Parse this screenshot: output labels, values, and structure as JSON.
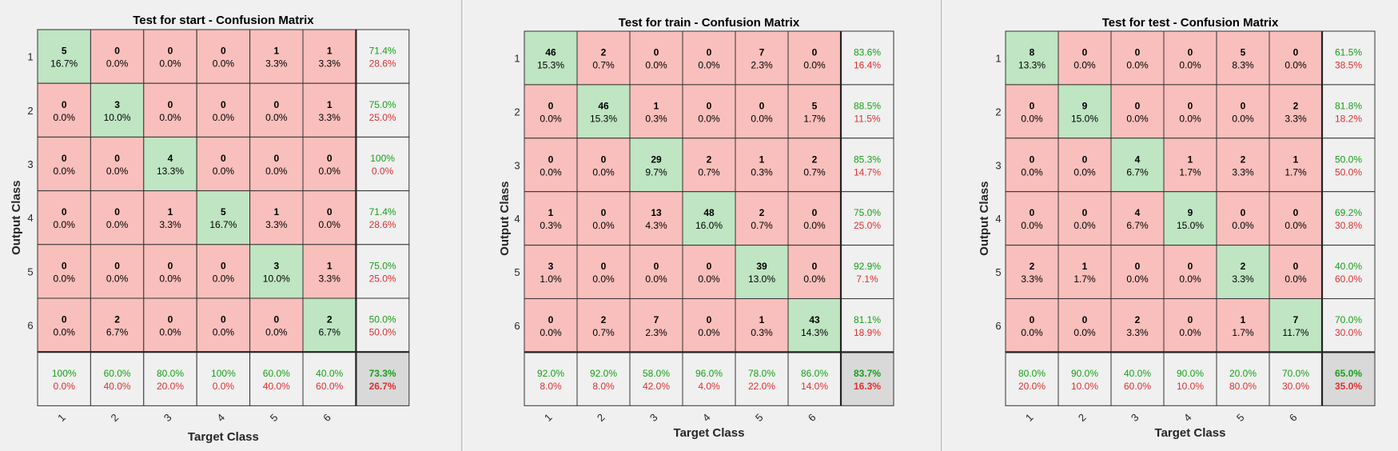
{
  "colors": {
    "correct_cell": "#bfe5c3",
    "wrong_cell": "#f9bfbc",
    "summary_cell": "#f0f0f0",
    "overall_cell": "#d9d9d9",
    "good_text": "#17a117",
    "bad_text": "#e03030",
    "background": "#f0f0f0"
  },
  "chart_data": [
    {
      "type": "heatmap",
      "title": "Test for start - Confusion Matrix",
      "xlabel": "Target Class",
      "ylabel": "Output Class",
      "classes": [
        "1",
        "2",
        "3",
        "4",
        "5",
        "6"
      ],
      "matrix": [
        [
          5,
          0,
          0,
          0,
          1,
          1
        ],
        [
          0,
          3,
          0,
          0,
          0,
          1
        ],
        [
          0,
          0,
          4,
          0,
          0,
          0
        ],
        [
          0,
          0,
          1,
          5,
          1,
          0
        ],
        [
          0,
          0,
          0,
          0,
          3,
          1
        ],
        [
          0,
          2,
          0,
          0,
          0,
          2
        ]
      ],
      "cell_pct": [
        [
          "16.7%",
          "0.0%",
          "0.0%",
          "0.0%",
          "3.3%",
          "3.3%"
        ],
        [
          "0.0%",
          "10.0%",
          "0.0%",
          "0.0%",
          "0.0%",
          "3.3%"
        ],
        [
          "0.0%",
          "0.0%",
          "13.3%",
          "0.0%",
          "0.0%",
          "0.0%"
        ],
        [
          "0.0%",
          "0.0%",
          "3.3%",
          "16.7%",
          "3.3%",
          "0.0%"
        ],
        [
          "0.0%",
          "0.0%",
          "0.0%",
          "0.0%",
          "10.0%",
          "3.3%"
        ],
        [
          "0.0%",
          "6.7%",
          "0.0%",
          "0.0%",
          "0.0%",
          "6.7%"
        ]
      ],
      "row_summary": [
        [
          "71.4%",
          "28.6%"
        ],
        [
          "75.0%",
          "25.0%"
        ],
        [
          "100%",
          "0.0%"
        ],
        [
          "71.4%",
          "28.6%"
        ],
        [
          "75.0%",
          "25.0%"
        ],
        [
          "50.0%",
          "50.0%"
        ]
      ],
      "col_summary": [
        [
          "100%",
          "0.0%"
        ],
        [
          "60.0%",
          "40.0%"
        ],
        [
          "80.0%",
          "20.0%"
        ],
        [
          "100%",
          "0.0%"
        ],
        [
          "60.0%",
          "40.0%"
        ],
        [
          "40.0%",
          "60.0%"
        ]
      ],
      "overall": [
        "73.3%",
        "26.7%"
      ]
    },
    {
      "type": "heatmap",
      "title": "Test for train - Confusion Matrix",
      "xlabel": "Target Class",
      "ylabel": "Output Class",
      "classes": [
        "1",
        "2",
        "3",
        "4",
        "5",
        "6"
      ],
      "matrix": [
        [
          46,
          2,
          0,
          0,
          7,
          0
        ],
        [
          0,
          46,
          1,
          0,
          0,
          5
        ],
        [
          0,
          0,
          29,
          2,
          1,
          2
        ],
        [
          1,
          0,
          13,
          48,
          2,
          0
        ],
        [
          3,
          0,
          0,
          0,
          39,
          0
        ],
        [
          0,
          2,
          7,
          0,
          1,
          43
        ]
      ],
      "cell_pct": [
        [
          "15.3%",
          "0.7%",
          "0.0%",
          "0.0%",
          "2.3%",
          "0.0%"
        ],
        [
          "0.0%",
          "15.3%",
          "0.3%",
          "0.0%",
          "0.0%",
          "1.7%"
        ],
        [
          "0.0%",
          "0.0%",
          "9.7%",
          "0.7%",
          "0.3%",
          "0.7%"
        ],
        [
          "0.3%",
          "0.0%",
          "4.3%",
          "16.0%",
          "0.7%",
          "0.0%"
        ],
        [
          "1.0%",
          "0.0%",
          "0.0%",
          "0.0%",
          "13.0%",
          "0.0%"
        ],
        [
          "0.0%",
          "0.7%",
          "2.3%",
          "0.0%",
          "0.3%",
          "14.3%"
        ]
      ],
      "row_summary": [
        [
          "83.6%",
          "16.4%"
        ],
        [
          "88.5%",
          "11.5%"
        ],
        [
          "85.3%",
          "14.7%"
        ],
        [
          "75.0%",
          "25.0%"
        ],
        [
          "92.9%",
          "7.1%"
        ],
        [
          "81.1%",
          "18.9%"
        ]
      ],
      "col_summary": [
        [
          "92.0%",
          "8.0%"
        ],
        [
          "92.0%",
          "8.0%"
        ],
        [
          "58.0%",
          "42.0%"
        ],
        [
          "96.0%",
          "4.0%"
        ],
        [
          "78.0%",
          "22.0%"
        ],
        [
          "86.0%",
          "14.0%"
        ]
      ],
      "overall": [
        "83.7%",
        "16.3%"
      ]
    },
    {
      "type": "heatmap",
      "title": "Test for test - Confusion Matrix",
      "xlabel": "Target Class",
      "ylabel": "Output Class",
      "classes": [
        "1",
        "2",
        "3",
        "4",
        "5",
        "6"
      ],
      "matrix": [
        [
          8,
          0,
          0,
          0,
          5,
          0
        ],
        [
          0,
          9,
          0,
          0,
          0,
          2
        ],
        [
          0,
          0,
          4,
          1,
          2,
          1
        ],
        [
          0,
          0,
          4,
          9,
          0,
          0
        ],
        [
          2,
          1,
          0,
          0,
          2,
          0
        ],
        [
          0,
          0,
          2,
          0,
          1,
          7
        ]
      ],
      "cell_pct": [
        [
          "13.3%",
          "0.0%",
          "0.0%",
          "0.0%",
          "8.3%",
          "0.0%"
        ],
        [
          "0.0%",
          "15.0%",
          "0.0%",
          "0.0%",
          "0.0%",
          "3.3%"
        ],
        [
          "0.0%",
          "0.0%",
          "6.7%",
          "1.7%",
          "3.3%",
          "1.7%"
        ],
        [
          "0.0%",
          "0.0%",
          "6.7%",
          "15.0%",
          "0.0%",
          "0.0%"
        ],
        [
          "3.3%",
          "1.7%",
          "0.0%",
          "0.0%",
          "3.3%",
          "0.0%"
        ],
        [
          "0.0%",
          "0.0%",
          "3.3%",
          "0.0%",
          "1.7%",
          "11.7%"
        ]
      ],
      "row_summary": [
        [
          "61.5%",
          "38.5%"
        ],
        [
          "81.8%",
          "18.2%"
        ],
        [
          "50.0%",
          "50.0%"
        ],
        [
          "69.2%",
          "30.8%"
        ],
        [
          "40.0%",
          "60.0%"
        ],
        [
          "70.0%",
          "30.0%"
        ]
      ],
      "col_summary": [
        [
          "80.0%",
          "20.0%"
        ],
        [
          "90.0%",
          "10.0%"
        ],
        [
          "40.0%",
          "60.0%"
        ],
        [
          "90.0%",
          "10.0%"
        ],
        [
          "20.0%",
          "80.0%"
        ],
        [
          "70.0%",
          "30.0%"
        ]
      ],
      "overall": [
        "65.0%",
        "35.0%"
      ]
    }
  ]
}
